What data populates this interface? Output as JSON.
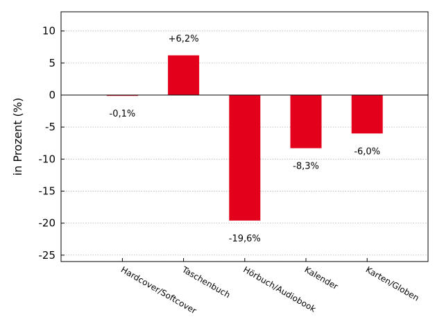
{
  "chart_data": {
    "type": "bar",
    "categories": [
      "Hardcover/Softcover",
      "Taschenbuch",
      "Hörbuch/Audiobook",
      "Kalender",
      "Karten/Globen"
    ],
    "values": [
      -0.1,
      6.2,
      -19.6,
      -8.3,
      -6.0
    ],
    "data_labels": [
      "-0,1%",
      "+6,2%",
      "-19,6%",
      "-8,3%",
      "-6,0%"
    ],
    "ylabel": "in Prozent (%)",
    "ylim": [
      -26,
      13
    ],
    "yticks": [
      10,
      5,
      0,
      -5,
      -10,
      -15,
      -20,
      -25
    ],
    "ytick_labels": [
      "10",
      "5",
      "0",
      "-5",
      "-10",
      "-15",
      "-20",
      "-25"
    ],
    "bar_color": "#e2001a",
    "grid": "horizontal-dotted",
    "legend": "none"
  }
}
